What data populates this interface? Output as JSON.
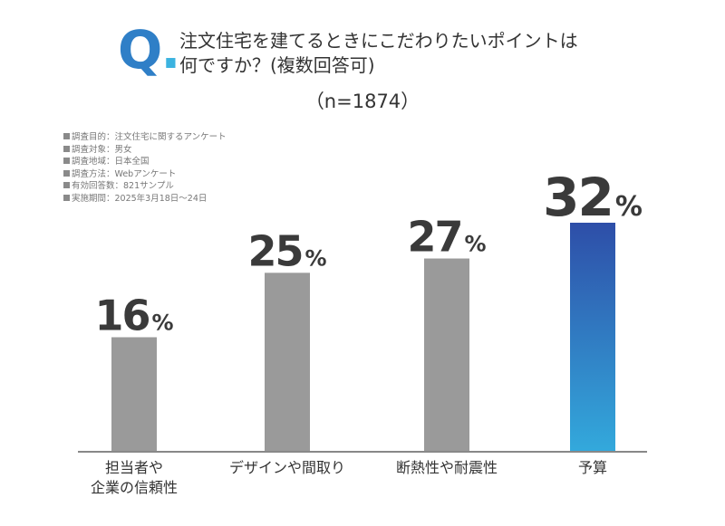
{
  "question": {
    "mark": "Q",
    "mark_dot": ".",
    "line1": "注文住宅を建てるときにこだわりたいポイントは",
    "line2": "何ですか？(複数回答可)"
  },
  "sample": "（n=1874）",
  "notes": [
    "調査目的：注文住宅に関するアンケート",
    "調査対象：男女",
    "調査地域：日本全国",
    "調査方法：Webアンケート",
    "有効回答数：821サンプル",
    "実施期間：2025年3月18日～24日"
  ],
  "colors": {
    "grey_bar": "#9a9a9a",
    "highlight_top": "#2e4ea8",
    "highlight_bottom": "#33a9dc",
    "axis": "#888888",
    "value_text": "#3a3a3a"
  },
  "chart_data": {
    "type": "bar",
    "categories": [
      [
        "担当者や",
        "企業の信頼性"
      ],
      [
        "デザインや間取り"
      ],
      [
        "断熱性や耐震性"
      ],
      [
        "予算"
      ]
    ],
    "values": [
      16,
      25,
      27,
      32
    ],
    "unit": "%",
    "highlight_index": 3,
    "ylim": [
      0,
      40
    ],
    "grid": false,
    "title": "",
    "xlabel": "",
    "ylabel": ""
  }
}
